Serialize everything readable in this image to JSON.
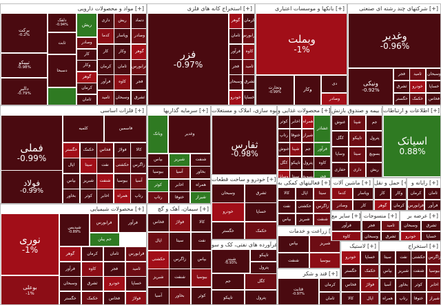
{
  "colors": {
    "dark": "#4a0a10",
    "mid": "#6d0d14",
    "red": "#8c0d16",
    "bright": "#a10e18",
    "green": "#2f7a22",
    "lgreen": "#4aa33a",
    "border": "#bdbdbd"
  },
  "sections": {
    "s1": "مواد و محصولات دارویی [+]",
    "s2": "استخراج کانه های فلزی [+]",
    "s3": "بانکها و موسسات اعتباری [+]",
    "s4": "شرکتهای چند رشته ای صنعتی [+]",
    "s5": "فلزات اساسی [+]",
    "s6": "سرمایه گذاریها [+]",
    "s7": "انبوه سازی، املاک و مستغلات [+]",
    "s8": "محصولات غذایی و [+]",
    "s9": "بیمه و صندوق بازنش [+]",
    "s10": "اطلاعات و ارتباطات [+]",
    "s11": "محصولات شیمیایی [+]",
    "s12": "خودرو و ساخت قطعات [+]",
    "s13": "فرآورده های نفتی، کک و سو [+]",
    "s14": "فعالیتهای کمکی به [+]",
    "s15": "سیمان، آهک و گچ [+]",
    "s16": "زراعت و خدمات [+]"
  },
  "tiles": {
    "fezar": {
      "name": "فزر",
      "pct": "-0.97%"
    },
    "vabmelat": {
      "name": "وبملت",
      "pct": "-1%"
    },
    "vaghadir": {
      "name": "وغدیر",
      "pct": "-0.96%"
    },
    "vanik": {
      "name": "ونیکی",
      "pct": "-0.92%"
    },
    "femeli": {
      "name": "فملی",
      "pct": "-0.99%"
    },
    "foolad": {
      "name": "فولاد",
      "pct": "-0.99%"
    },
    "tfars": {
      "name": "ثفارس",
      "pct": "-0.98%"
    },
    "asiatak": {
      "name": "اسیاتک",
      "pct": "0.88%"
    },
    "noori": {
      "name": "نوری",
      "pct": "-1%"
    },
    "buali": {
      "name": "بوعلی",
      "pct": "-1%"
    },
    "barkat": {
      "name": "برکت",
      "pct": "-0.2%"
    },
    "dalfak": {
      "name": "دلفک",
      "pct": "-0.94%"
    },
    "tipiko": {
      "name": "تیپیکو",
      "pct": "-0.98%"
    },
    "dalbar": {
      "name": "دالبر",
      "pct": "-0.79%"
    },
    "vatjarat": {
      "name": "وتجارت",
      "pct": "-0.99%"
    },
    "vsapa": {
      "name": "وصاپا",
      "pct": "-0.97%"
    },
    "shpdis": {
      "name": "شپدیس",
      "pct": "-0.89%"
    },
    "shbandar": {
      "name": "شبندر",
      "pct": "-0.93%"
    },
    "ghenar": {
      "name": "قثابت",
      "pct": "-0.97%"
    },
    "label_mix": [
      "داری",
      "ریش",
      "دتماد",
      "کدما",
      "وپاسار",
      "وصادر",
      "کار",
      "وکار",
      "گوهر",
      "کرمان",
      "ثامان",
      "فرابورس",
      "فرآور",
      "کاوه",
      "فجر",
      "ثامید",
      "وسبحان",
      "ثشرق",
      "خودرو",
      "خساپا",
      "خگستر",
      "خکمک",
      "فخاس",
      "فولاژ",
      "کالا",
      "اپال",
      "سیتا",
      "نفت",
      "حکشتی",
      "زاگرس",
      "بپاس",
      "شبریز",
      "شنفت",
      "بیوسیا",
      "آسیا",
      "بخاور",
      "کوثر",
      "اخابر",
      "همراه",
      "رتاپ",
      "ختوقا",
      "شیراز",
      "غنوش",
      "شپنا",
      "جم",
      "کگل",
      "تاپیکو",
      "پترول",
      "وساپا",
      "سیتا",
      "بسویچ",
      "حفاری"
    ],
    "small": [
      "دی",
      "ثجنو",
      "کچاد",
      "کنور",
      "فاسمین",
      "وامید",
      "جهرم",
      "دفارا",
      "درازک",
      "فخوز",
      "کرما",
      "اخزر",
      "ومعادن",
      "ثاخت",
      "فارس",
      "زر",
      "سپ",
      "چکاپا",
      "شستا",
      "زماهان",
      "کهرام",
      "وسین",
      "آکنتور",
      "نوین",
      "پارسان",
      "کالا"
    ]
  }
}
